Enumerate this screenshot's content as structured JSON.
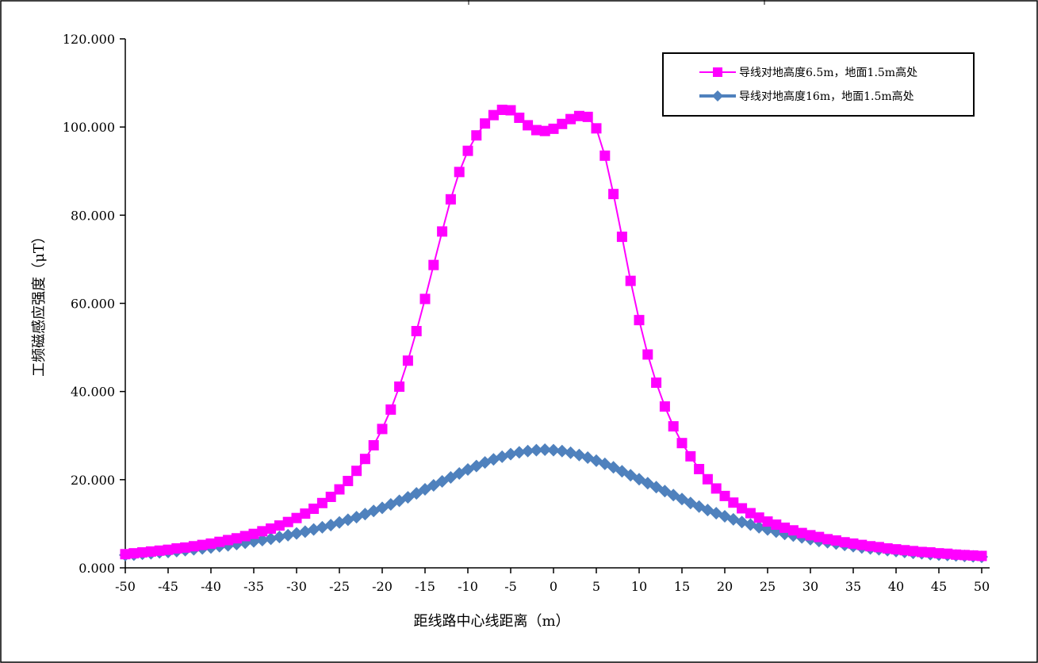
{
  "chart_data": {
    "type": "line",
    "title": "",
    "xlabel": "距线路中心线距离（m）",
    "ylabel": "工频磁感应强度（μT）",
    "xlim": [
      -50,
      50
    ],
    "ylim": [
      0,
      120
    ],
    "x_ticks": [
      "-50",
      "-45",
      "-40",
      "-35",
      "-30",
      "-25",
      "-20",
      "-15",
      "-10",
      "-5",
      "0",
      "5",
      "10",
      "15",
      "20",
      "25",
      "30",
      "35",
      "40",
      "45",
      "50"
    ],
    "y_ticks": [
      "0.000",
      "20.000",
      "40.000",
      "60.000",
      "80.000",
      "100.000",
      "120.000"
    ],
    "grid": false,
    "legend_position": "top-right",
    "x": [
      -50,
      -49,
      -48,
      -47,
      -46,
      -45,
      -44,
      -43,
      -42,
      -41,
      -40,
      -39,
      -38,
      -37,
      -36,
      -35,
      -34,
      -33,
      -32,
      -31,
      -30,
      -29,
      -28,
      -27,
      -26,
      -25,
      -24,
      -23,
      -22,
      -21,
      -20,
      -19,
      -18,
      -17,
      -16,
      -15,
      -14,
      -13,
      -12,
      -11,
      -10,
      -9,
      -8,
      -7,
      -6,
      -5,
      -4,
      -3,
      -2,
      -1,
      0,
      1,
      2,
      3,
      4,
      5,
      6,
      7,
      8,
      9,
      10,
      11,
      12,
      13,
      14,
      15,
      16,
      17,
      18,
      19,
      20,
      21,
      22,
      23,
      24,
      25,
      26,
      27,
      28,
      29,
      30,
      31,
      32,
      33,
      34,
      35,
      36,
      37,
      38,
      39,
      40,
      41,
      42,
      43,
      44,
      45,
      46,
      47,
      48,
      49,
      50
    ],
    "series": [
      {
        "name": "导线对地高度6.5m，地面1.5m高处",
        "color": "#ff00ff",
        "marker": "square",
        "values": [
          3.1,
          3.3,
          3.5,
          3.7,
          3.9,
          4.1,
          4.4,
          4.6,
          4.9,
          5.2,
          5.5,
          5.9,
          6.3,
          6.7,
          7.2,
          7.7,
          8.3,
          8.9,
          9.6,
          10.4,
          11.3,
          12.3,
          13.4,
          14.7,
          16.1,
          17.8,
          19.7,
          22.0,
          24.7,
          27.8,
          31.5,
          35.9,
          41.1,
          47.0,
          53.7,
          61.0,
          68.7,
          76.3,
          83.6,
          89.8,
          94.6,
          98.1,
          100.8,
          102.7,
          103.9,
          103.8,
          102.1,
          100.4,
          99.3,
          99.1,
          99.6,
          100.7,
          101.8,
          102.5,
          102.3,
          99.7,
          93.5,
          84.8,
          75.1,
          65.1,
          56.2,
          48.4,
          42.0,
          36.6,
          32.1,
          28.3,
          25.3,
          22.4,
          20.1,
          18.0,
          16.3,
          14.8,
          13.5,
          12.4,
          11.4,
          10.5,
          9.8,
          9.1,
          8.5,
          7.9,
          7.4,
          7.0,
          6.5,
          6.2,
          5.8,
          5.5,
          5.2,
          4.9,
          4.7,
          4.4,
          4.2,
          4.0,
          3.8,
          3.6,
          3.5,
          3.3,
          3.2,
          3.0,
          2.9,
          2.8,
          2.7
        ]
      },
      {
        "name": "导线对地高度16m，地面1.5m高处",
        "color": "#4f81bd",
        "marker": "diamond",
        "values": [
          2.9,
          3.0,
          3.2,
          3.3,
          3.5,
          3.6,
          3.8,
          4.0,
          4.2,
          4.4,
          4.6,
          4.9,
          5.1,
          5.4,
          5.7,
          6.0,
          6.3,
          6.6,
          7.0,
          7.4,
          7.8,
          8.2,
          8.7,
          9.2,
          9.7,
          10.3,
          10.9,
          11.5,
          12.2,
          12.9,
          13.6,
          14.4,
          15.2,
          16.0,
          16.9,
          17.8,
          18.7,
          19.6,
          20.5,
          21.4,
          22.3,
          23.1,
          23.9,
          24.6,
          25.2,
          25.8,
          26.2,
          26.5,
          26.7,
          26.8,
          26.7,
          26.5,
          26.1,
          25.6,
          25.0,
          24.3,
          23.6,
          22.8,
          21.9,
          21.0,
          20.1,
          19.2,
          18.3,
          17.4,
          16.5,
          15.6,
          14.7,
          13.9,
          13.1,
          12.4,
          11.7,
          11.0,
          10.4,
          9.8,
          9.2,
          8.7,
          8.2,
          7.7,
          7.3,
          6.9,
          6.5,
          6.1,
          5.8,
          5.5,
          5.2,
          4.9,
          4.6,
          4.4,
          4.2,
          4.0,
          3.8,
          3.6,
          3.4,
          3.3,
          3.1,
          3.0,
          2.9,
          2.8,
          2.7,
          2.6,
          2.5
        ]
      }
    ]
  }
}
